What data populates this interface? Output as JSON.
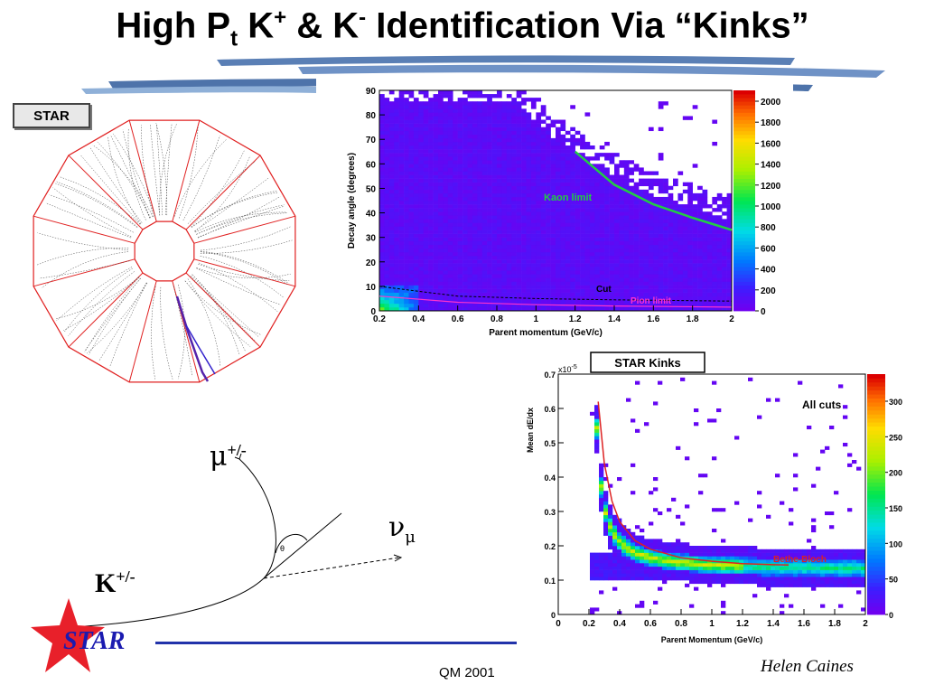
{
  "slide": {
    "title_main": "High P",
    "title_sub": "t",
    "title_k1": " K",
    "title_sup1": "+",
    "title_amp": " & K",
    "title_sup2": "-",
    "title_rest": " Identification  Via “Kinks”",
    "star_badge": "STAR",
    "footer_center": "QM 2001",
    "footer_author": "Helen Caines",
    "footer_logo": "STAR"
  },
  "kink_diagram": {
    "parent": "K",
    "parent_charge": "+/-",
    "daughter": "μ",
    "daughter_charge": "+/-",
    "neutrino": "ν",
    "neutrino_sub": "μ",
    "angle_label": "θ"
  },
  "chart_data": [
    {
      "type": "heatmap",
      "xlabel": "Parent momentum (GeV/c)",
      "ylabel": "Decay angle (degrees)",
      "xlim": [
        0.2,
        2.0
      ],
      "ylim": [
        0,
        90
      ],
      "x_ticks": [
        "0.2",
        "0.4",
        "0.6",
        "0.8",
        "1",
        "1.2",
        "1.4",
        "1.6",
        "1.8",
        "2"
      ],
      "y_ticks": [
        "0",
        "10",
        "20",
        "30",
        "40",
        "50",
        "60",
        "70",
        "80",
        "90"
      ],
      "colorbar_ticks": [
        "0",
        "200",
        "400",
        "600",
        "800",
        "1000",
        "1200",
        "1400",
        "1600",
        "1800",
        "2000"
      ],
      "annotations": [
        {
          "text": "Kaon limit",
          "color": "#22cc44"
        },
        {
          "text": "Cut",
          "color": "#000000"
        },
        {
          "text": "Pion limit",
          "color": "#ff33cc"
        }
      ],
      "kaon_limit_curve": [
        [
          1.2,
          65
        ],
        [
          1.4,
          51.5
        ],
        [
          1.6,
          43.5
        ],
        [
          1.8,
          38
        ],
        [
          2.0,
          33
        ]
      ],
      "cut_curve": [
        [
          0.2,
          10
        ],
        [
          0.6,
          6
        ],
        [
          1.0,
          5
        ],
        [
          1.4,
          4.5
        ],
        [
          2.0,
          4
        ]
      ],
      "pion_limit_curve": [
        [
          0.2,
          6
        ],
        [
          0.6,
          3.5
        ],
        [
          1.0,
          2.5
        ],
        [
          1.4,
          2
        ],
        [
          2.0,
          1.5
        ]
      ]
    },
    {
      "type": "heatmap",
      "title": "STAR Kinks",
      "annotation": "All cuts",
      "xlabel": "Parent Momentum (GeV/c)",
      "ylabel": "Mean dE/dx",
      "y_exponent": "x10",
      "y_exponent_power": "-5",
      "xlim": [
        0,
        2
      ],
      "ylim": [
        0,
        0.7
      ],
      "x_ticks": [
        "0",
        "0.2",
        "0.4",
        "0.6",
        "0.8",
        "1",
        "1.2",
        "1.4",
        "1.6",
        "1.8",
        "2"
      ],
      "y_ticks": [
        "0",
        "0.1",
        "0.2",
        "0.3",
        "0.4",
        "0.5",
        "0.6",
        "0.7"
      ],
      "colorbar_ticks": [
        "0",
        "50",
        "100",
        "150",
        "200",
        "250",
        "300"
      ],
      "curve_label": "Bethe-Bloch",
      "curve_color": "#dd2222",
      "bethe_bloch_curve": [
        [
          0.26,
          0.62
        ],
        [
          0.3,
          0.44
        ],
        [
          0.35,
          0.33
        ],
        [
          0.4,
          0.27
        ],
        [
          0.5,
          0.215
        ],
        [
          0.6,
          0.19
        ],
        [
          0.8,
          0.165
        ],
        [
          1.0,
          0.155
        ],
        [
          1.2,
          0.148
        ],
        [
          1.4,
          0.145
        ],
        [
          1.5,
          0.144
        ]
      ]
    }
  ]
}
